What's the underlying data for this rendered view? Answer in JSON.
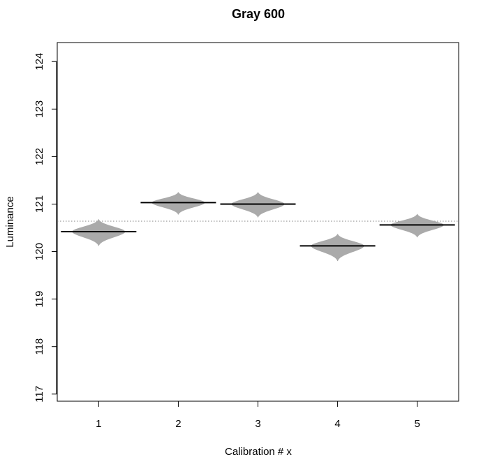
{
  "chart_data": {
    "type": "beanplot",
    "title": "Gray  600",
    "xlabel": "Calibration # x",
    "ylabel": "Luminance",
    "categories": [
      "1",
      "2",
      "3",
      "4",
      "5"
    ],
    "ylim": [
      116.85,
      124.4
    ],
    "yticks": [
      "117",
      "118",
      "119",
      "120",
      "121",
      "122",
      "123",
      "124"
    ],
    "reference_line": 120.64,
    "series": [
      {
        "x": "1",
        "mean": 120.42,
        "min": 120.12,
        "max": 120.68
      },
      {
        "x": "2",
        "mean": 121.03,
        "min": 120.78,
        "max": 121.25
      },
      {
        "x": "3",
        "mean": 121.0,
        "min": 120.72,
        "max": 121.25
      },
      {
        "x": "4",
        "mean": 120.12,
        "min": 119.8,
        "max": 120.37
      },
      {
        "x": "5",
        "mean": 120.56,
        "min": 120.3,
        "max": 120.79
      }
    ],
    "bean_color": "#aaaaaa",
    "line_color": "#000000",
    "reference_color": "#808080",
    "grid": false,
    "legend": "none"
  }
}
